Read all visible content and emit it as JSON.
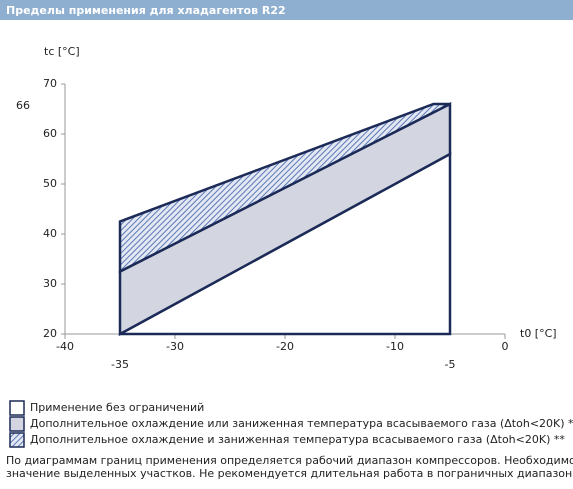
{
  "header": {
    "title": "Пределы применения для хладагентов R22"
  },
  "chart_data": {
    "type": "envelope",
    "y_label": "tc [°C]",
    "x_label": "t0 [°C]",
    "xlim": [
      -40,
      0
    ],
    "ylim": [
      20,
      70
    ],
    "xticks": [
      -40,
      -30,
      -20,
      -10,
      0
    ],
    "yticks": [
      20,
      30,
      40,
      50,
      60,
      70
    ],
    "marked_x": [
      -35,
      -5
    ],
    "marked_y": [
      66
    ],
    "series": [
      {
        "name": "Применение без ограничений",
        "color": "#ffffff",
        "hatch": false,
        "x": [
          -35,
          -5,
          -5
        ],
        "y": [
          20,
          20,
          56
        ]
      },
      {
        "name": "Дополнительное охлаждение или заниженная температура всасываемого газа (Δtoh<20K) *",
        "color": "#d3d6e0",
        "hatch": false,
        "x": [
          -35,
          -35,
          -5,
          -5
        ],
        "y": [
          20,
          32.5,
          66,
          56
        ]
      },
      {
        "name": "Дополнительное охлаждение и заниженная температура всасываемого газа (Δtoh<20K) **",
        "color": "#5b78b8",
        "hatch": true,
        "x": [
          -35,
          -35,
          -6.5,
          -5
        ],
        "y": [
          32.5,
          42.5,
          66,
          66
        ]
      }
    ]
  },
  "notes": [
    "По диаграммам границ применения определяется рабочий диапазон компрессоров. Необходимо учитывать",
    "значение выделенных участков. Не рекомендуется длительная работа в пограничных диапазонах ."
  ]
}
